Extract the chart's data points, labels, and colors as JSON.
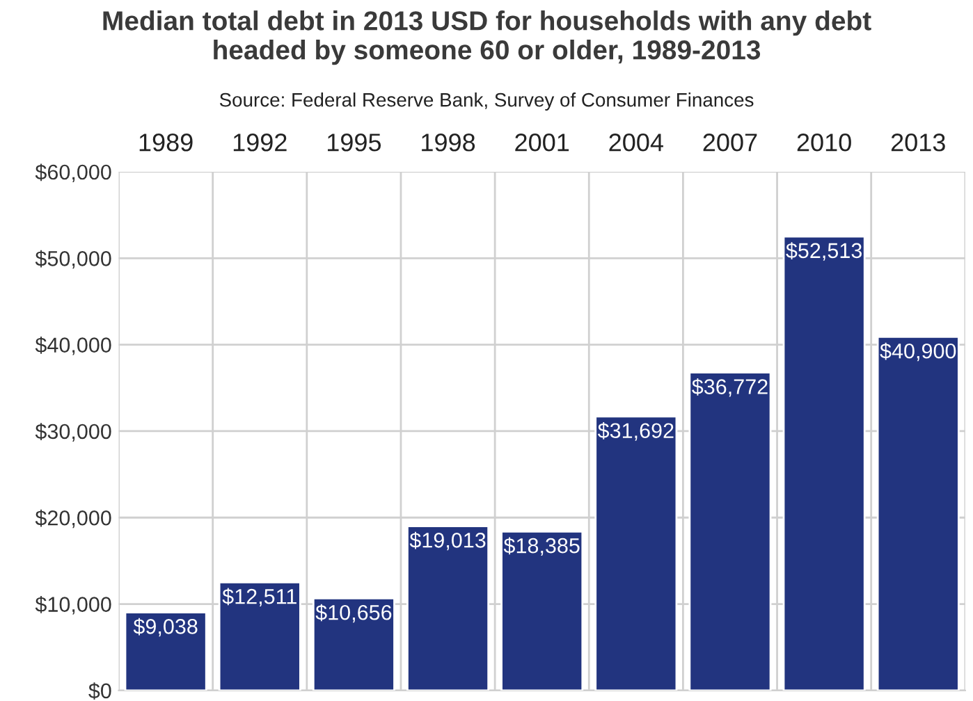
{
  "chart_data": {
    "type": "bar",
    "title": "Median total debt in 2013 USD for households with any debt\nheaded by someone 60 or older, 1989-2013",
    "annotations": [
      "Source: Federal Reserve Bank, Survey of Consumer Finances"
    ],
    "categories": [
      "1989",
      "1992",
      "1995",
      "1998",
      "2001",
      "2004",
      "2007",
      "2010",
      "2013"
    ],
    "values": [
      9038,
      12511,
      10656,
      19013,
      18385,
      31692,
      36772,
      52513,
      40900
    ],
    "color": "#22347f",
    "value_labels": [
      "$9,038",
      "$12,511",
      "$10,656",
      "$19,013",
      "$18,385",
      "$31,692",
      "$36,772",
      "$52,513",
      "$40,900"
    ],
    "ylim": [
      0,
      60000
    ],
    "yticks": [
      {
        "value": 0,
        "label": "$0"
      },
      {
        "value": 10000,
        "label": "$10,000"
      },
      {
        "value": 20000,
        "label": "$20,000"
      },
      {
        "value": 30000,
        "label": "$30,000"
      },
      {
        "value": 40000,
        "label": "$40,000"
      },
      {
        "value": 50000,
        "label": "$50,000"
      },
      {
        "value": 60000,
        "label": "$60,000"
      }
    ],
    "grid": true,
    "legend": false
  }
}
